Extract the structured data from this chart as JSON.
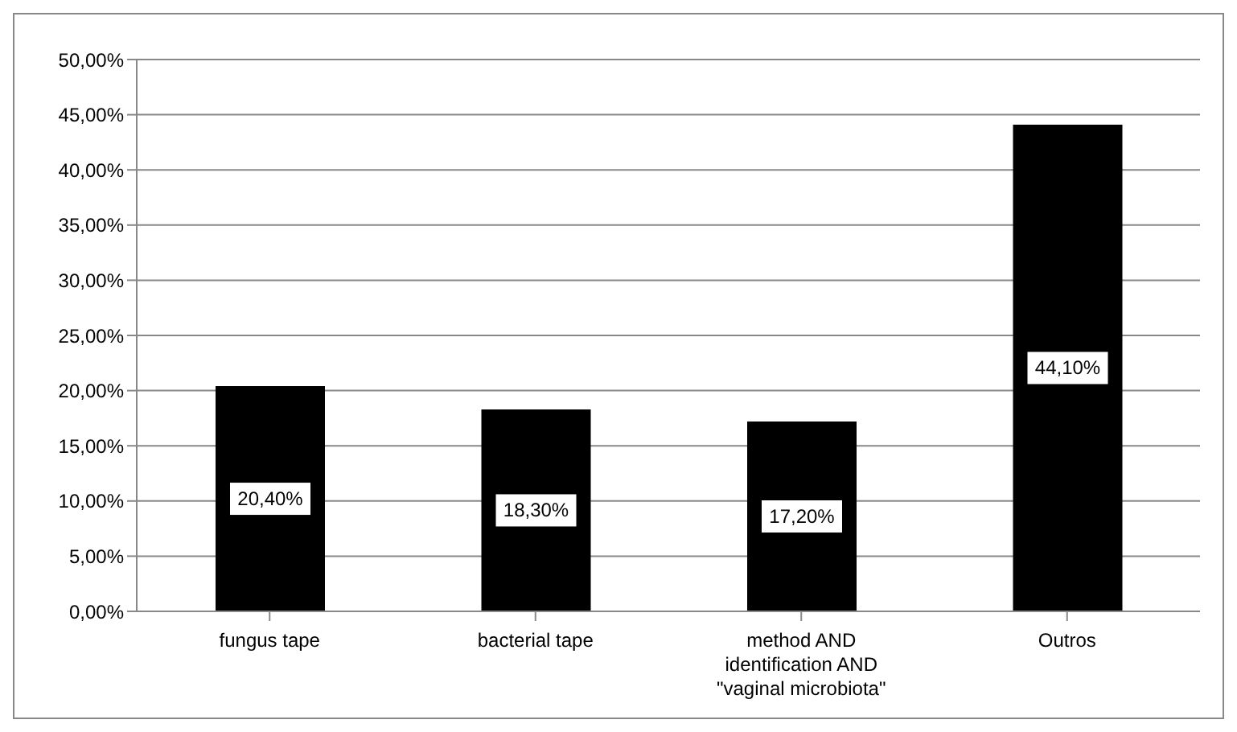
{
  "chart_data": {
    "type": "bar",
    "categories": [
      "fungus tape",
      "bacterial tape",
      "method AND identification AND \"vaginal microbiota\"",
      "Outros"
    ],
    "values": [
      20.4,
      18.3,
      17.2,
      44.1
    ],
    "color": "#000000",
    "value_labels": [
      "20,40%",
      "18,30%",
      "17,20%",
      "44,10%"
    ],
    "ylim": [
      0,
      50
    ],
    "yticks": [
      {
        "value": 0,
        "label": "0,00%"
      },
      {
        "value": 5,
        "label": "5,00%"
      },
      {
        "value": 10,
        "label": "10,00%"
      },
      {
        "value": 15,
        "label": "15,00%"
      },
      {
        "value": 20,
        "label": "20,00%"
      },
      {
        "value": 25,
        "label": "25,00%"
      },
      {
        "value": 30,
        "label": "30,00%"
      },
      {
        "value": 35,
        "label": "35,00%"
      },
      {
        "value": 40,
        "label": "40,00%"
      },
      {
        "value": 45,
        "label": "45,00%"
      },
      {
        "value": 50,
        "label": "50,00%"
      }
    ],
    "grid": "y",
    "legend": false
  }
}
